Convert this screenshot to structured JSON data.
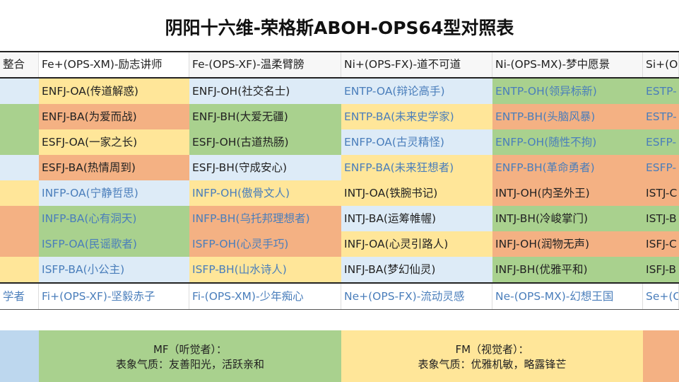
{
  "title": "阴阳十六维-荣格斯ABOH-OPS64型对照表",
  "palette": {
    "y": "#ffe699",
    "o": "#f4b183",
    "g": "#a9d18e",
    "b": "#ddebf7",
    "blue_text": "#4a7ebb",
    "dark_text": "#222222",
    "bottom_blue": "#bdd7ee"
  },
  "header": [
    "整合",
    "Fe+(OPS-XM)-励志讲师",
    "Fe-(OPS-XF)-温柔臂膀",
    "Ni+(OPS-FX)-道不可道",
    "Ni-(OPS-MX)-梦中愿景",
    "Si+(O"
  ],
  "rows": [
    [
      {
        "t": "",
        "c": "b"
      },
      {
        "t": "ENFJ-OA(传道解惑)",
        "c": "y"
      },
      {
        "t": "ENFJ-OH(社交名士)",
        "c": "b"
      },
      {
        "t": "ENTP-OA(辩论高手)",
        "c": "b",
        "blue": true
      },
      {
        "t": "ENTP-OH(领异标新)",
        "c": "g",
        "blue": true
      },
      {
        "t": "ESTP-",
        "c": "g",
        "blue": true
      }
    ],
    [
      {
        "t": "",
        "c": "g"
      },
      {
        "t": "ENFJ-BA(为爱而战)",
        "c": "o"
      },
      {
        "t": "ENFJ-BH(大爱无疆)",
        "c": "g"
      },
      {
        "t": "ENTP-BA(未来史学家)",
        "c": "y",
        "blue": true
      },
      {
        "t": "ENTP-BH(头脑风暴)",
        "c": "o",
        "blue": true
      },
      {
        "t": "ESTP-",
        "c": "o",
        "blue": true
      }
    ],
    [
      {
        "t": "",
        "c": "g"
      },
      {
        "t": "ESFJ-OA(一家之长)",
        "c": "y"
      },
      {
        "t": "ESFJ-OH(古道热肠)",
        "c": "g"
      },
      {
        "t": "ENFP-OA(古灵精怪)",
        "c": "b",
        "blue": true
      },
      {
        "t": "ENFP-OH(随性不拘)",
        "c": "g",
        "blue": true
      },
      {
        "t": "ESFP-",
        "c": "g",
        "blue": true
      }
    ],
    [
      {
        "t": "",
        "c": "b"
      },
      {
        "t": "ESFJ-BA(热情周到)",
        "c": "o"
      },
      {
        "t": "ESFJ-BH(守成安心)",
        "c": "b"
      },
      {
        "t": "ENFP-BA(未来狂想者)",
        "c": "y",
        "blue": true
      },
      {
        "t": "ENFP-BH(革命勇者)",
        "c": "o",
        "blue": true
      },
      {
        "t": "ESFP-",
        "c": "o",
        "blue": true
      }
    ],
    [
      {
        "t": "",
        "c": "y"
      },
      {
        "t": "INFP-OA(宁静哲思)",
        "c": "b",
        "blue": true
      },
      {
        "t": "INFP-OH(傲骨文人)",
        "c": "y",
        "blue": true
      },
      {
        "t": "INTJ-OA(铁腕书记)",
        "c": "y"
      },
      {
        "t": "INTJ-OH(内圣外王)",
        "c": "o"
      },
      {
        "t": "ISTJ-C",
        "c": "o"
      }
    ],
    [
      {
        "t": "",
        "c": "o"
      },
      {
        "t": "INFP-BA(心有洞天)",
        "c": "g",
        "blue": true
      },
      {
        "t": "INFP-BH(乌托邦理想者)",
        "c": "o",
        "blue": true
      },
      {
        "t": "INTJ-BA(运筹帷幄)",
        "c": "b"
      },
      {
        "t": "INTJ-BH(冷峻掌门)",
        "c": "g"
      },
      {
        "t": "ISTJ-B",
        "c": "g"
      }
    ],
    [
      {
        "t": "",
        "c": "o"
      },
      {
        "t": "ISFP-OA(民谣歌者)",
        "c": "g",
        "blue": true
      },
      {
        "t": "ISFP-OH(心灵手巧)",
        "c": "o",
        "blue": true
      },
      {
        "t": "INFJ-OA(心灵引路人)",
        "c": "y"
      },
      {
        "t": "INFJ-OH(润物无声)",
        "c": "o"
      },
      {
        "t": "ISFJ-C",
        "c": "o"
      }
    ],
    [
      {
        "t": "",
        "c": "y"
      },
      {
        "t": "ISFP-BA(小公主)",
        "c": "b",
        "blue": true
      },
      {
        "t": "ISFP-BH(山水诗人)",
        "c": "y",
        "blue": true
      },
      {
        "t": "INFJ-BA(梦幻仙灵)",
        "c": "b"
      },
      {
        "t": "INFJ-BH(优雅平和)",
        "c": "g"
      },
      {
        "t": "ISFJ-B",
        "c": "g"
      }
    ]
  ],
  "footer": [
    "学者",
    "Fi+(OPS-XF)-坚毅赤子",
    "Fi-(OPS-XM)-少年痴心",
    "Ne+(OPS-FX)-流动灵感",
    "Ne-(OPS-MX)-幻想王国",
    "Se+(O"
  ],
  "legend": {
    "mf": {
      "line1": "MF（听觉者）：",
      "line2": "表象气质：友善阳光，活跃亲和"
    },
    "fm": {
      "line1": "FM（视觉者）：",
      "line2": "表象气质：优雅机敏，略露锋芒"
    }
  }
}
